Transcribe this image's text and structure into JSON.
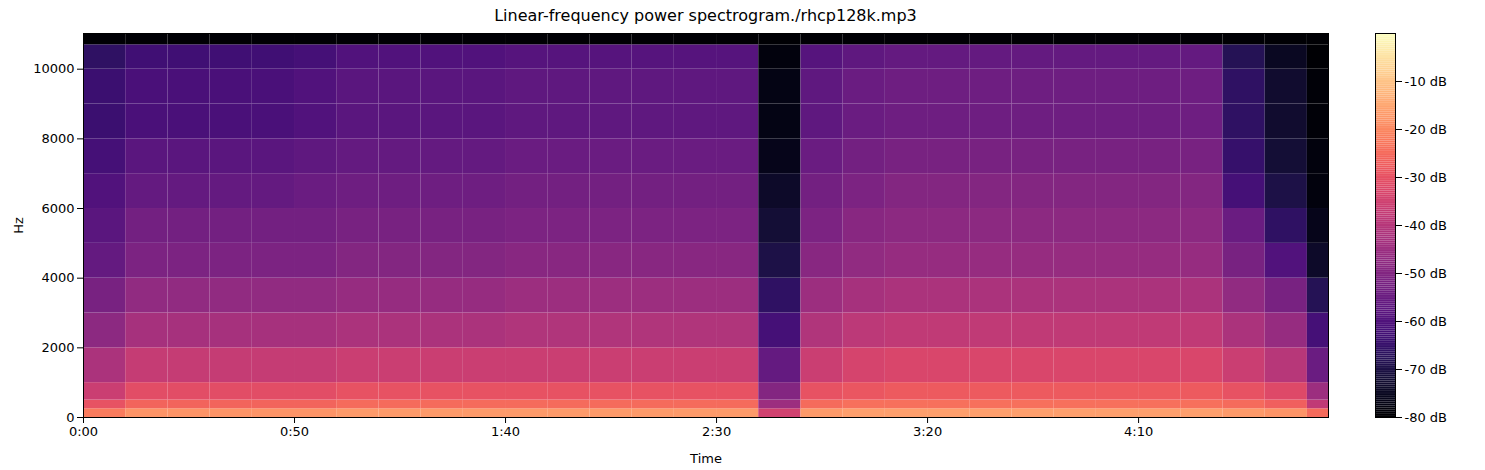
{
  "chart_data": {
    "type": "heatmap",
    "title": "Linear-frequency power spectrogram./rhcp128k.mp3",
    "xlabel": "Time",
    "ylabel": "Hz",
    "color": "magma",
    "xlim": [
      0,
      295
    ],
    "ylim": [
      0,
      11025
    ],
    "xticks": [
      {
        "value": 0,
        "label": "0:00"
      },
      {
        "value": 50,
        "label": "0:50"
      },
      {
        "value": 100,
        "label": "1:40"
      },
      {
        "value": 150,
        "label": "2:30"
      },
      {
        "value": 200,
        "label": "3:20"
      },
      {
        "value": 250,
        "label": "4:10"
      }
    ],
    "yticks": [
      0,
      2000,
      4000,
      6000,
      8000,
      10000
    ],
    "x_bins": [
      0,
      10,
      20,
      30,
      40,
      50,
      60,
      70,
      80,
      90,
      100,
      110,
      120,
      130,
      140,
      150,
      160,
      170,
      180,
      190,
      200,
      210,
      220,
      230,
      240,
      250,
      260,
      270,
      280,
      290,
      295
    ],
    "y_bins": [
      0,
      250,
      500,
      1000,
      2000,
      3000,
      4000,
      5000,
      6000,
      7000,
      8000,
      9000,
      10000,
      10700,
      11025
    ],
    "cells": [
      [
        -22,
        -18,
        -18,
        -18,
        -18,
        -18,
        -17,
        -17,
        -17,
        -17,
        -17,
        -17,
        -17,
        -17,
        -17,
        -17,
        -35,
        -17,
        -16,
        -16,
        -16,
        -16,
        -16,
        -16,
        -16,
        -16,
        -16,
        -17,
        -18,
        -25
      ],
      [
        -30,
        -26,
        -26,
        -26,
        -26,
        -26,
        -25,
        -25,
        -25,
        -25,
        -25,
        -25,
        -25,
        -25,
        -25,
        -25,
        -45,
        -25,
        -24,
        -24,
        -24,
        -24,
        -24,
        -24,
        -24,
        -24,
        -24,
        -25,
        -27,
        -38
      ],
      [
        -36,
        -31,
        -31,
        -31,
        -31,
        -31,
        -30,
        -30,
        -30,
        -30,
        -30,
        -30,
        -30,
        -30,
        -30,
        -30,
        -50,
        -30,
        -29,
        -28,
        -28,
        -28,
        -28,
        -28,
        -28,
        -28,
        -28,
        -30,
        -32,
        -45
      ],
      [
        -42,
        -37,
        -37,
        -37,
        -37,
        -37,
        -36,
        -36,
        -36,
        -36,
        -36,
        -36,
        -36,
        -36,
        -36,
        -36,
        -56,
        -36,
        -34,
        -33,
        -33,
        -33,
        -33,
        -33,
        -33,
        -33,
        -33,
        -36,
        -40,
        -55
      ],
      [
        -48,
        -43,
        -43,
        -43,
        -43,
        -43,
        -42,
        -42,
        -42,
        -42,
        -41,
        -41,
        -41,
        -41,
        -41,
        -41,
        -62,
        -41,
        -39,
        -38,
        -38,
        -38,
        -38,
        -38,
        -38,
        -38,
        -38,
        -42,
        -46,
        -62
      ],
      [
        -52,
        -47,
        -47,
        -47,
        -47,
        -47,
        -46,
        -46,
        -46,
        -46,
        -45,
        -45,
        -45,
        -45,
        -45,
        -45,
        -66,
        -45,
        -43,
        -42,
        -42,
        -42,
        -42,
        -42,
        -42,
        -42,
        -42,
        -47,
        -52,
        -68
      ],
      [
        -56,
        -51,
        -51,
        -51,
        -51,
        -51,
        -50,
        -50,
        -50,
        -50,
        -49,
        -49,
        -49,
        -49,
        -49,
        -49,
        -70,
        -49,
        -47,
        -46,
        -46,
        -46,
        -46,
        -46,
        -46,
        -46,
        -46,
        -52,
        -60,
        -74
      ],
      [
        -58,
        -53,
        -53,
        -53,
        -53,
        -53,
        -52,
        -52,
        -52,
        -52,
        -51,
        -51,
        -51,
        -51,
        -51,
        -51,
        -72,
        -51,
        -49,
        -48,
        -48,
        -48,
        -48,
        -48,
        -48,
        -48,
        -48,
        -55,
        -66,
        -76
      ],
      [
        -60,
        -56,
        -56,
        -56,
        -56,
        -55,
        -54,
        -54,
        -54,
        -54,
        -53,
        -53,
        -53,
        -53,
        -53,
        -53,
        -74,
        -53,
        -51,
        -50,
        -50,
        -50,
        -50,
        -50,
        -50,
        -50,
        -50,
        -62,
        -70,
        -78
      ],
      [
        -62,
        -58,
        -58,
        -58,
        -58,
        -57,
        -56,
        -56,
        -56,
        -56,
        -55,
        -55,
        -55,
        -55,
        -55,
        -55,
        -76,
        -55,
        -53,
        -52,
        -52,
        -52,
        -52,
        -52,
        -52,
        -52,
        -52,
        -65,
        -72,
        -78
      ],
      [
        -64,
        -61,
        -61,
        -61,
        -61,
        -60,
        -58,
        -58,
        -58,
        -58,
        -57,
        -57,
        -57,
        -57,
        -57,
        -57,
        -77,
        -57,
        -55,
        -54,
        -54,
        -54,
        -54,
        -54,
        -54,
        -54,
        -54,
        -66,
        -73,
        -79
      ],
      [
        -64,
        -61,
        -61,
        -61,
        -61,
        -60,
        -58,
        -58,
        -58,
        -58,
        -57,
        -57,
        -57,
        -57,
        -57,
        -57,
        -77,
        -57,
        -55,
        -54,
        -54,
        -54,
        -54,
        -54,
        -54,
        -54,
        -54,
        -66,
        -73,
        -79
      ],
      [
        -66,
        -63,
        -63,
        -63,
        -63,
        -62,
        -60,
        -60,
        -60,
        -60,
        -59,
        -59,
        -59,
        -59,
        -59,
        -59,
        -78,
        -59,
        -57,
        -56,
        -56,
        -56,
        -56,
        -56,
        -56,
        -56,
        -56,
        -68,
        -75,
        -80
      ],
      [
        -80,
        -80,
        -80,
        -80,
        -80,
        -80,
        -80,
        -80,
        -80,
        -80,
        -80,
        -80,
        -80,
        -80,
        -80,
        -80,
        -80,
        -80,
        -80,
        -80,
        -80,
        -80,
        -80,
        -80,
        -80,
        -80,
        -80,
        -80,
        -80,
        -80
      ]
    ],
    "colorbar": {
      "range": [
        -80,
        0
      ],
      "ticks": [
        {
          "value": -80,
          "label": "-80 dB"
        },
        {
          "value": -70,
          "label": "-70 dB"
        },
        {
          "value": -60,
          "label": "-60 dB"
        },
        {
          "value": -50,
          "label": "-50 dB"
        },
        {
          "value": -40,
          "label": "-40 dB"
        },
        {
          "value": -30,
          "label": "-30 dB"
        },
        {
          "value": -20,
          "label": "-20 dB"
        },
        {
          "value": -10,
          "label": "-10 dB"
        }
      ]
    }
  }
}
